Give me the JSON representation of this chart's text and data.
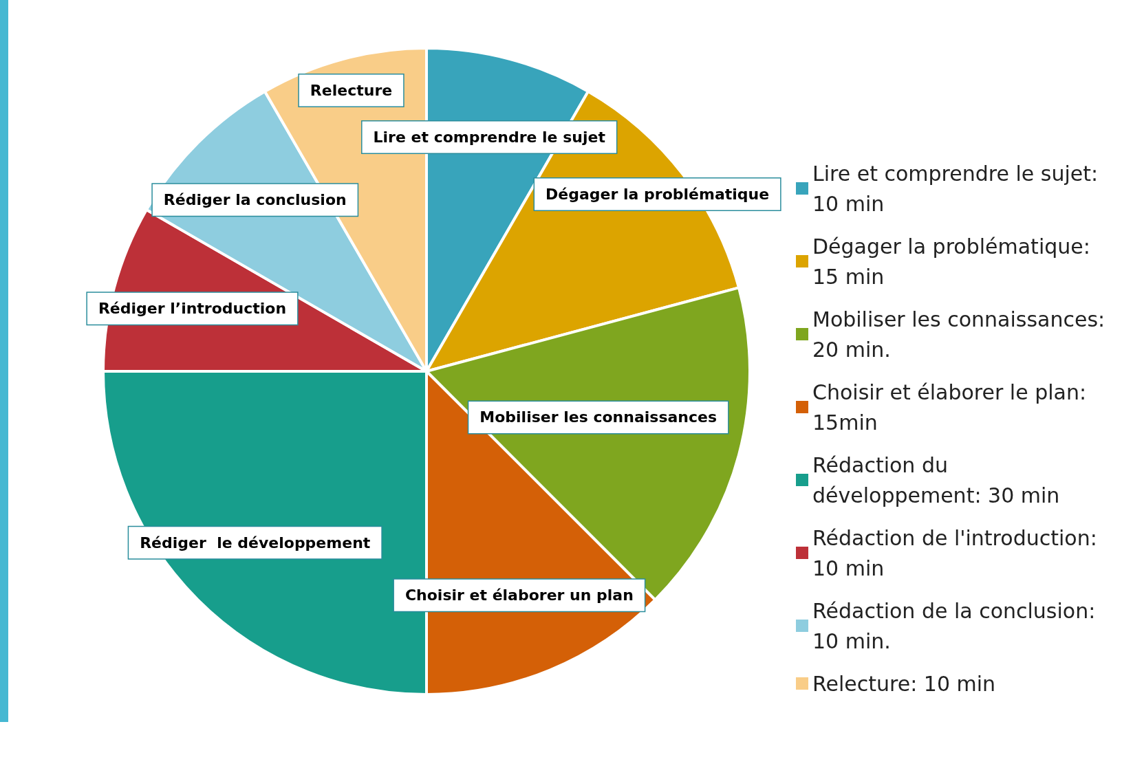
{
  "chart_data": {
    "type": "pie",
    "categories": [
      "Lire et comprendre le sujet: 10 min",
      "Dégager la problématique: 15 min",
      "Mobiliser les connaissances: 20 min.",
      "Choisir et élaborer le plan: 15min",
      "Rédaction du développement: 30 min",
      "Rédaction de l'introduction: 10 min",
      "Rédaction de la conclusion: 10 min.",
      "Relecture: 10 min"
    ],
    "values": [
      10,
      15,
      20,
      15,
      30,
      10,
      10,
      10
    ],
    "colors": [
      "#38a4bb",
      "#dca400",
      "#7fa61f",
      "#d46007",
      "#179e8c",
      "#bd3038",
      "#8ecddf",
      "#f9cd88"
    ],
    "value_labels": [
      "Lire et comprendre le sujet",
      "Dégager la problématique",
      "Mobiliser les connaissances",
      "Choisir et élaborer un plan",
      "Rédiger  le développement",
      "Rédiger l’introduction",
      "Rédiger la conclusion",
      "Relecture"
    ],
    "legend": "right"
  }
}
